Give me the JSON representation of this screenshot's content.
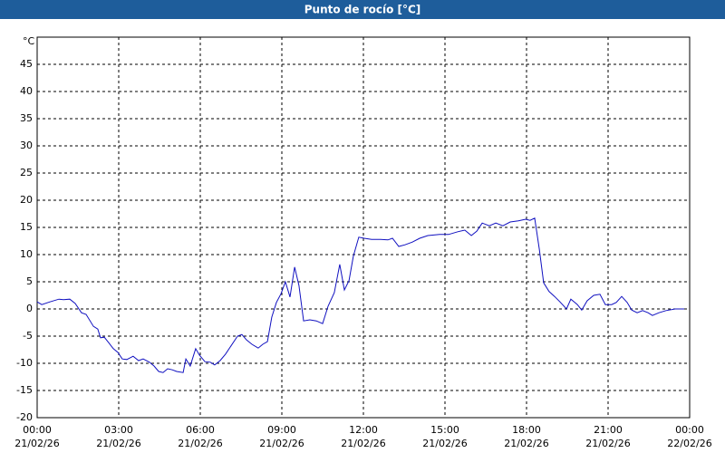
{
  "chart_data": {
    "type": "line",
    "title": "Punto de rocío [°C]",
    "y_unit": "°C",
    "x": [
      0,
      0.17,
      0.47,
      0.8,
      0.97,
      1.2,
      1.4,
      1.63,
      1.8,
      2.07,
      2.23,
      2.33,
      2.47,
      2.63,
      2.8,
      2.97,
      3.13,
      3.3,
      3.53,
      3.73,
      3.9,
      4.13,
      4.3,
      4.47,
      4.63,
      4.8,
      4.97,
      5.13,
      5.37,
      5.47,
      5.63,
      5.83,
      5.97,
      6.17,
      6.37,
      6.53,
      6.73,
      6.93,
      7.13,
      7.37,
      7.53,
      7.7,
      7.9,
      8.13,
      8.3,
      8.47,
      8.63,
      8.8,
      8.97,
      9.13,
      9.3,
      9.47,
      9.63,
      9.8,
      10.03,
      10.27,
      10.5,
      10.7,
      10.93,
      11.13,
      11.3,
      11.47,
      11.63,
      11.83,
      12.03,
      12.3,
      12.63,
      12.9,
      13.07,
      13.3,
      13.53,
      13.8,
      14.07,
      14.37,
      14.8,
      15.13,
      15.47,
      15.73,
      15.97,
      16.17,
      16.37,
      16.63,
      16.87,
      17.13,
      17.4,
      17.7,
      17.97,
      18.13,
      18.3,
      18.47,
      18.63,
      18.83,
      19.03,
      19.23,
      19.47,
      19.63,
      19.87,
      20.03,
      20.23,
      20.47,
      20.7,
      20.9,
      21.13,
      21.3,
      21.5,
      21.7,
      21.87,
      22.07,
      22.27,
      22.47,
      22.63,
      22.87,
      23.13,
      23.47,
      23.8
    ],
    "series": [
      {
        "name": "Punto de rocío",
        "color": "#1010c0",
        "values": [
          1.3,
          0.8,
          1.3,
          1.8,
          1.7,
          1.8,
          1,
          -0.7,
          -1,
          -3.2,
          -3.7,
          -5.3,
          -5.2,
          -6.2,
          -7.3,
          -8,
          -9.2,
          -9.3,
          -8.7,
          -9.5,
          -9.2,
          -9.8,
          -10.5,
          -11.5,
          -11.7,
          -11,
          -11.2,
          -11.5,
          -11.7,
          -9.2,
          -10.5,
          -7.3,
          -8.5,
          -9.7,
          -9.8,
          -10.3,
          -9.5,
          -8.3,
          -6.8,
          -5,
          -4.7,
          -5.7,
          -6.5,
          -7.2,
          -6.5,
          -6,
          -1.5,
          1.2,
          2.8,
          5,
          2.2,
          7.7,
          4.3,
          -2.2,
          -2,
          -2.2,
          -2.7,
          0.5,
          3,
          8.2,
          3.5,
          5.2,
          9.7,
          13.2,
          13,
          12.8,
          12.8,
          12.7,
          13,
          11.5,
          11.8,
          12.3,
          13,
          13.5,
          13.7,
          13.7,
          14.2,
          14.5,
          13.5,
          14.3,
          15.8,
          15.3,
          15.8,
          15.3,
          16,
          16.2,
          16.5,
          16.3,
          16.7,
          11,
          4.8,
          3.2,
          2.3,
          1.3,
          0,
          1.8,
          0.8,
          -0.2,
          1.5,
          2.5,
          2.7,
          0.8,
          0.8,
          1.2,
          2.3,
          1.2,
          -0.2,
          -0.7,
          -0.3,
          -0.7,
          -1.2,
          -0.7,
          -0.3,
          0,
          0
        ]
      }
    ],
    "xlim": [
      0,
      24
    ],
    "xticks": [
      {
        "value": 0,
        "label": "00:00",
        "date": "21/02/26"
      },
      {
        "value": 3,
        "label": "03:00",
        "date": "21/02/26"
      },
      {
        "value": 6,
        "label": "06:00",
        "date": "21/02/26"
      },
      {
        "value": 9,
        "label": "09:00",
        "date": "21/02/26"
      },
      {
        "value": 12,
        "label": "12:00",
        "date": "21/02/26"
      },
      {
        "value": 15,
        "label": "15:00",
        "date": "21/02/26"
      },
      {
        "value": 18,
        "label": "18:00",
        "date": "21/02/26"
      },
      {
        "value": 21,
        "label": "21:00",
        "date": "21/02/26"
      },
      {
        "value": 24,
        "label": "00:00",
        "date": "22/02/26"
      }
    ],
    "ylim": [
      -20,
      50
    ],
    "yticks": [
      -20,
      -15,
      -10,
      -5,
      0,
      5,
      10,
      15,
      20,
      25,
      30,
      35,
      40,
      45
    ],
    "grid": true
  }
}
